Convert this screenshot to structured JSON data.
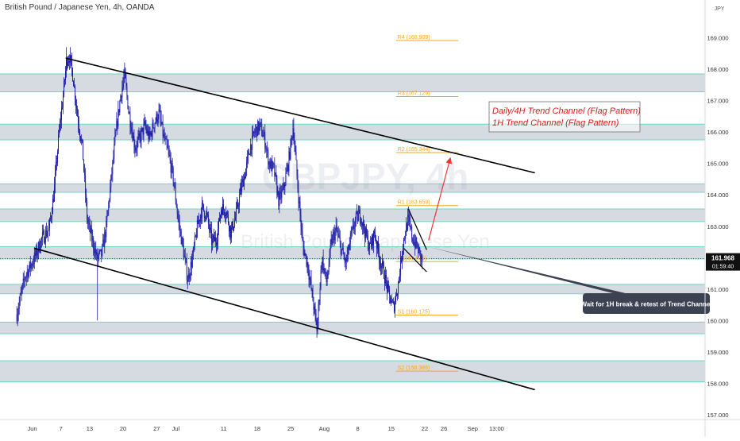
{
  "header": {
    "symbol_title": "British Pound / Japanese Yen, 4h, OANDA",
    "currency": "JPY",
    "watermark_symbol": "GBPJPY, 4h",
    "watermark_name": "British Pound / Japanese Yen"
  },
  "price_label": {
    "price": "161.968",
    "countdown": "01:59:40"
  },
  "annotations": {
    "box_line1": "Daily/4H Trend Channel (Flag Pattern)",
    "box_line2": "1H Trend Channel (Flag Pattern)",
    "callout": "Wait for 1H break & retest of Trend Channel"
  },
  "colors": {
    "candle": "#1a1aa8",
    "zone_fill": "#cfd3dc",
    "zone_border": "#6fd6c4",
    "pivot": "#f5a623",
    "box_text": "#d81b1b",
    "arrow": "#e53935",
    "callout_bg": "#3c4252",
    "price_tag": "#111111"
  },
  "chart_data": {
    "type": "candlestick",
    "y_axis": {
      "min": 156.85,
      "max": 170.2,
      "ticks": [
        "157.000",
        "158.000",
        "159.000",
        "160.000",
        "161.000",
        "162.000",
        "163.000",
        "164.000",
        "165.000",
        "166.000",
        "167.000",
        "168.000",
        "169.000"
      ]
    },
    "x_axis": {
      "ticks": [
        {
          "label": "Jun",
          "day": 0
        },
        {
          "label": "7",
          "day": 6
        },
        {
          "label": "13",
          "day": 12
        },
        {
          "label": "20",
          "day": 19
        },
        {
          "label": "27",
          "day": 26
        },
        {
          "label": "Jul",
          "day": 30
        },
        {
          "label": "11",
          "day": 40
        },
        {
          "label": "18",
          "day": 47
        },
        {
          "label": "25",
          "day": 54
        },
        {
          "label": "Aug",
          "day": 61
        },
        {
          "label": "8",
          "day": 68
        },
        {
          "label": "15",
          "day": 75
        },
        {
          "label": "22",
          "day": 82
        },
        {
          "label": "26",
          "day": 86
        },
        {
          "label": "Sep",
          "day": 92
        },
        {
          "label": "13:00",
          "day": 97
        }
      ]
    },
    "price_path": [
      [
        -3.2,
        160.2
      ],
      [
        -1.5,
        161.4
      ],
      [
        0.5,
        162.0
      ],
      [
        2,
        162.6
      ],
      [
        3.5,
        162.9
      ],
      [
        4.5,
        164.0
      ],
      [
        5.5,
        165.8
      ],
      [
        6.5,
        167.2
      ],
      [
        7.2,
        168.3
      ],
      [
        7.8,
        168.4
      ],
      [
        8.5,
        167.8
      ],
      [
        9.5,
        166.5
      ],
      [
        10.5,
        165.5
      ],
      [
        11.5,
        163.2
      ],
      [
        12.5,
        162.6
      ],
      [
        13.5,
        162.0
      ],
      [
        14.5,
        162.1
      ],
      [
        15.5,
        163.0
      ],
      [
        16.5,
        164.5
      ],
      [
        17.5,
        166.0
      ],
      [
        18.5,
        167.2
      ],
      [
        19.3,
        167.8
      ],
      [
        20.2,
        166.6
      ],
      [
        21.5,
        165.5
      ],
      [
        22.5,
        165.8
      ],
      [
        23.5,
        166.2
      ],
      [
        24.5,
        165.8
      ],
      [
        25.5,
        166.3
      ],
      [
        26.5,
        166.6
      ],
      [
        27.5,
        165.8
      ],
      [
        28.5,
        165.3
      ],
      [
        29.5,
        164.5
      ],
      [
        30.5,
        163.2
      ],
      [
        31.5,
        162.3
      ],
      [
        32.5,
        161.3
      ],
      [
        33.5,
        162.0
      ],
      [
        34.5,
        163.0
      ],
      [
        35.5,
        163.6
      ],
      [
        36.5,
        163.3
      ],
      [
        37.5,
        162.5
      ],
      [
        38.5,
        162.6
      ],
      [
        39.5,
        163.6
      ],
      [
        40.5,
        163.5
      ],
      [
        41.5,
        162.8
      ],
      [
        42.5,
        163.3
      ],
      [
        43.5,
        164.1
      ],
      [
        44.5,
        164.7
      ],
      [
        45.5,
        165.5
      ],
      [
        46.5,
        166.0
      ],
      [
        47.5,
        166.2
      ],
      [
        48.5,
        165.8
      ],
      [
        49.5,
        165.0
      ],
      [
        50.5,
        164.8
      ],
      [
        51.5,
        163.8
      ],
      [
        52.5,
        164.2
      ],
      [
        53.5,
        165.0
      ],
      [
        54.5,
        166.2
      ],
      [
        55.5,
        164.2
      ],
      [
        56.5,
        162.4
      ],
      [
        57.5,
        161.8
      ],
      [
        58.5,
        160.8
      ],
      [
        59.5,
        159.7
      ],
      [
        60.5,
        162.0
      ],
      [
        61.5,
        161.2
      ],
      [
        62.5,
        162.5
      ],
      [
        63.5,
        162.9
      ],
      [
        64.5,
        162.3
      ],
      [
        65.5,
        161.8
      ],
      [
        66.5,
        162.6
      ],
      [
        67.5,
        163.2
      ],
      [
        68.5,
        163.4
      ],
      [
        69.5,
        162.8
      ],
      [
        70.5,
        162.3
      ],
      [
        71.5,
        162.8
      ],
      [
        72.5,
        162.0
      ],
      [
        73.5,
        161.5
      ],
      [
        74.5,
        160.8
      ],
      [
        75.5,
        160.4
      ],
      [
        76.5,
        161.2
      ],
      [
        77.5,
        162.5
      ],
      [
        78.5,
        163.2
      ],
      [
        79.5,
        162.6
      ],
      [
        80.5,
        162.3
      ],
      [
        81.5,
        161.9
      ]
    ],
    "extremes": [
      {
        "day": 7.2,
        "high": 168.7
      },
      {
        "day": 13.6,
        "low": 160.0
      },
      {
        "day": 19.3,
        "high": 167.95
      },
      {
        "day": 59.5,
        "low": 159.45
      },
      {
        "day": 54.6,
        "high": 166.45
      }
    ],
    "zones": [
      [
        167.28,
        167.85
      ],
      [
        165.75,
        166.25
      ],
      [
        164.08,
        164.35
      ],
      [
        163.15,
        163.55
      ],
      [
        161.96,
        162.35
      ],
      [
        160.85,
        161.15
      ],
      [
        159.58,
        159.95
      ],
      [
        158.05,
        158.72
      ]
    ],
    "trendlines": {
      "channel_upper": [
        [
          7.0,
          168.35
        ],
        [
          105,
          164.7
        ]
      ],
      "channel_lower": [
        [
          0.5,
          162.3
        ],
        [
          105,
          157.8
        ]
      ],
      "flag_upper": [
        [
          78.6,
          163.55
        ],
        [
          82.4,
          162.25
        ]
      ],
      "flag_lower": [
        [
          77.6,
          162.3
        ],
        [
          82.4,
          161.55
        ]
      ]
    },
    "pivots": [
      {
        "label": "R4 (168.909)",
        "price": 168.909
      },
      {
        "label": "R3 (167.129)",
        "price": 167.129
      },
      {
        "label": "R2 (165.344)",
        "price": 165.344
      },
      {
        "label": "R1 (163.659)",
        "price": 163.659
      },
      {
        "label": "P (161.875)",
        "price": 161.875
      },
      {
        "label": "S1 (160.175)",
        "price": 160.175
      },
      {
        "label": "S2 (158.389)",
        "price": 158.389
      }
    ],
    "pivot_span_days": [
      76,
      89
    ],
    "arrow": {
      "from": [
        82.8,
        162.55
      ],
      "to": [
        87.3,
        165.15
      ]
    },
    "current_price": 161.968
  }
}
